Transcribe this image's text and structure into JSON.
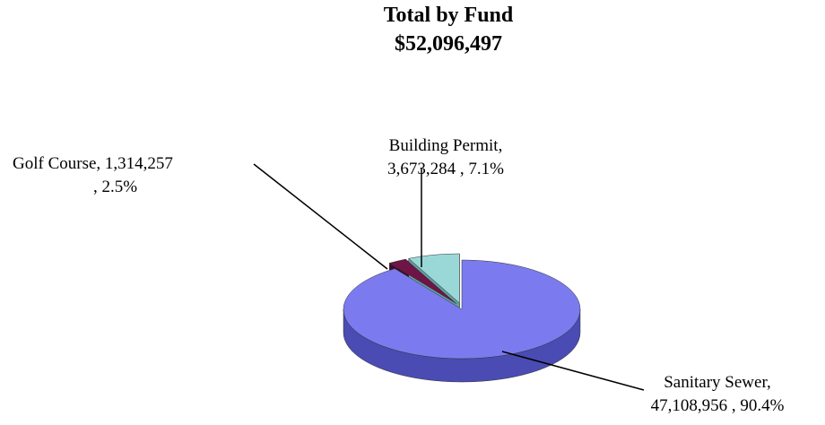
{
  "chart_data": {
    "type": "pie",
    "title": "Total by Fund",
    "subtitle": "$52,096,497",
    "categories": [
      "Sanitary Sewer",
      "Golf Course",
      "Building Permit"
    ],
    "values": [
      47108956,
      1314257,
      3673284
    ],
    "value_labels": [
      "47,108,956",
      "1,314,257",
      "3,673,284"
    ],
    "percent_labels": [
      "90.4%",
      "2.5%",
      "7.1%"
    ],
    "colors": [
      "#7b7bef",
      "#6e1446",
      "#9ad8d8"
    ],
    "side_colors": [
      "#4b4bb4",
      "#420a28",
      "#5fa0a0"
    ]
  }
}
